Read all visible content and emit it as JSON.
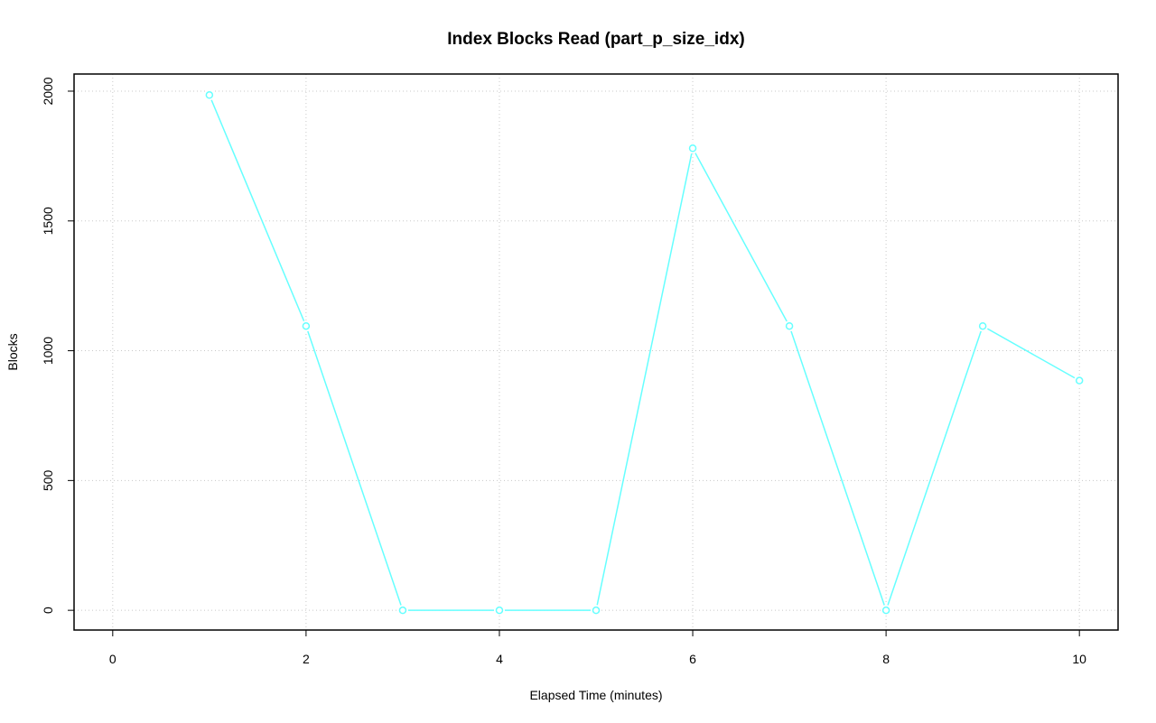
{
  "chart_data": {
    "type": "line",
    "title": "Index Blocks Read (part_p_size_idx)",
    "x_label": "Elapsed Time (minutes)",
    "y_label": "Blocks",
    "x": [
      1,
      2,
      3,
      4,
      5,
      6,
      7,
      8,
      9,
      10
    ],
    "values": [
      1985,
      1095,
      0,
      0,
      0,
      1780,
      1095,
      0,
      1095,
      885
    ],
    "color": "#66ffff",
    "xlim": [
      -0.4,
      10.4
    ],
    "xticks": [
      0,
      2,
      4,
      6,
      8,
      10
    ],
    "ylim": [
      -76,
      2066
    ],
    "yticks": [
      0,
      500,
      1000,
      1500,
      2000
    ],
    "grid": true
  }
}
